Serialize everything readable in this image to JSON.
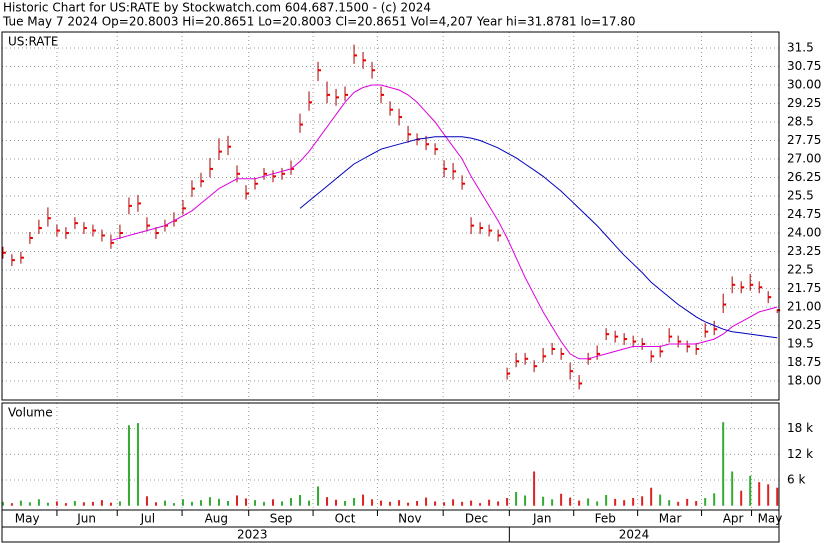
{
  "header": {
    "line1": "Historic Chart for US:RATE by Stockwatch.com 604.687.1500 - (c) 2024",
    "line2": "Tue May  7 2024  Op=20.8003  Hi=20.8651  Lo=20.8003  Cl=20.8651  Vol=4,207  Year hi=31.8781  lo=17.80"
  },
  "chart_data": [
    {
      "type": "ohlc",
      "title": "US:RATE",
      "xlim": [
        -0.1,
        86.2
      ],
      "ylim": [
        17.23,
        32.15
      ],
      "yticks": [
        {
          "value": 18,
          "label": "18.00"
        },
        18.75,
        19.5,
        {
          "value": 20.25,
          "label": "20.25"
        },
        {
          "value": 21,
          "label": "21.00"
        },
        21.75,
        22.5,
        23.25,
        {
          "value": 24,
          "label": "24.00"
        },
        24.75,
        25.5,
        26.25,
        {
          "value": 27,
          "label": "27.00"
        },
        27.75,
        28.5,
        29.25,
        {
          "value": 30,
          "label": "30.00"
        },
        30.75,
        31.5
      ],
      "xticks": [
        {
          "value": 2.7,
          "label": "May"
        },
        {
          "value": 9.3,
          "label": "Jun"
        },
        {
          "value": 16.1,
          "label": "Jul"
        },
        {
          "value": 23.7,
          "label": "Aug"
        },
        {
          "value": 30.9,
          "label": "Sep"
        },
        {
          "value": 38,
          "label": "Oct"
        },
        {
          "value": 45.2,
          "label": "Nov"
        },
        {
          "value": 52.6,
          "label": "Dec"
        },
        {
          "value": 59.9,
          "label": "Jan"
        },
        {
          "value": 66.9,
          "label": "Feb"
        },
        {
          "value": 74.1,
          "label": "Mar"
        },
        {
          "value": 81.1,
          "label": "Apr"
        },
        {
          "value": 85.2,
          "label": "May"
        }
      ],
      "years": [
        {
          "value": 27.7,
          "label": "2023"
        },
        {
          "value": 70.1,
          "label": "2024"
        }
      ],
      "grid": true,
      "bar_color": "#aa0000",
      "close_color": "#ee0000",
      "high": [
        23.4,
        23.1,
        23.2,
        24.0,
        24.5,
        25.0,
        24.3,
        24.2,
        24.6,
        24.4,
        24.3,
        24.1,
        23.9,
        24.3,
        25.4,
        25.5,
        24.6,
        24.2,
        24.5,
        24.8,
        25.3,
        26.1,
        26.4,
        27.0,
        27.8,
        27.9,
        26.7,
        25.9,
        26.2,
        26.6,
        26.5,
        26.6,
        26.9,
        28.8,
        29.7,
        30.9,
        30.1,
        29.8,
        29.9,
        31.6,
        31.3,
        30.9,
        29.9,
        29.3,
        29.0,
        28.3,
        28.0,
        27.9,
        27.6,
        26.9,
        26.8,
        26.3,
        24.6,
        24.4,
        24.3,
        24.1,
        18.5,
        19.1,
        19.1,
        18.8,
        19.3,
        19.5,
        19.3,
        18.7,
        18.2,
        19.1,
        19.4,
        20.1,
        20.0,
        19.9,
        19.8,
        19.7,
        19.2,
        19.4,
        20.1,
        19.8,
        19.6,
        19.5,
        20.3,
        20.4,
        21.5,
        22.2,
        22.0,
        22.3,
        22.0,
        21.6,
        20.87
      ],
      "low": [
        23.0,
        22.7,
        22.8,
        23.6,
        24.0,
        24.3,
        23.9,
        23.8,
        24.2,
        24.0,
        23.9,
        23.7,
        23.4,
        23.8,
        24.8,
        24.9,
        24.1,
        23.8,
        24.1,
        24.3,
        24.8,
        25.5,
        25.9,
        26.3,
        27.0,
        27.2,
        26.1,
        25.4,
        25.8,
        26.2,
        26.1,
        26.2,
        26.4,
        28.1,
        29.0,
        30.2,
        29.3,
        29.2,
        29.4,
        30.9,
        30.7,
        30.3,
        29.3,
        28.8,
        28.4,
        27.7,
        27.6,
        27.4,
        27.2,
        26.3,
        26.2,
        25.8,
        24.0,
        24.0,
        23.9,
        23.7,
        18.1,
        18.6,
        18.7,
        18.4,
        18.8,
        19.1,
        18.9,
        18.1,
        17.7,
        18.7,
        18.9,
        19.7,
        19.6,
        19.5,
        19.4,
        19.3,
        18.8,
        19.0,
        19.6,
        19.4,
        19.2,
        19.1,
        19.8,
        19.9,
        20.8,
        21.6,
        21.6,
        21.7,
        21.6,
        21.2,
        20.8
      ],
      "close": [
        23.2,
        22.9,
        23.0,
        23.8,
        24.2,
        24.6,
        24.1,
        24.0,
        24.4,
        24.2,
        24.1,
        23.9,
        23.6,
        24.0,
        25.1,
        25.2,
        24.3,
        24.0,
        24.3,
        24.5,
        25.0,
        25.8,
        26.1,
        26.6,
        27.3,
        27.5,
        26.4,
        25.6,
        26.0,
        26.4,
        26.3,
        26.4,
        26.6,
        28.4,
        29.3,
        30.6,
        29.6,
        29.5,
        29.6,
        31.2,
        31.0,
        30.6,
        29.6,
        29.0,
        28.7,
        28.0,
        27.8,
        27.6,
        27.4,
        26.6,
        26.5,
        26.0,
        24.3,
        24.2,
        24.1,
        23.9,
        18.3,
        18.8,
        18.9,
        18.6,
        19.0,
        19.3,
        19.1,
        18.4,
        17.9,
        18.9,
        19.1,
        19.9,
        19.8,
        19.7,
        19.6,
        19.5,
        19.0,
        19.2,
        19.8,
        19.6,
        19.4,
        19.3,
        20.0,
        20.1,
        21.1,
        21.9,
        21.8,
        21.9,
        21.8,
        21.4,
        20.87
      ],
      "lines": [
        {
          "color": "#dd00dd",
          "values": [
            null,
            null,
            null,
            null,
            null,
            null,
            null,
            null,
            null,
            null,
            null,
            null,
            23.7,
            23.8,
            23.9,
            24.0,
            24.1,
            24.2,
            24.3,
            24.5,
            24.7,
            24.9,
            25.2,
            25.5,
            25.8,
            26.0,
            26.2,
            26.2,
            26.2,
            26.3,
            26.4,
            26.5,
            26.6,
            26.9,
            27.3,
            27.8,
            28.3,
            28.8,
            29.3,
            29.7,
            29.9,
            30.0,
            30.0,
            29.9,
            29.8,
            29.6,
            29.3,
            28.9,
            28.5,
            28.0,
            27.5,
            27.0,
            26.3,
            25.7,
            25.1,
            24.5,
            23.8,
            23.0,
            22.2,
            21.5,
            20.8,
            20.2,
            19.6,
            19.1,
            18.9,
            18.9,
            19.0,
            19.1,
            19.2,
            19.3,
            19.4,
            19.4,
            19.4,
            19.4,
            19.5,
            19.5,
            19.5,
            19.5,
            19.6,
            19.7,
            19.9,
            20.2,
            20.4,
            20.6,
            20.8,
            20.9,
            21.0
          ]
        },
        {
          "color": "#0000bb",
          "values": [
            null,
            null,
            null,
            null,
            null,
            null,
            null,
            null,
            null,
            null,
            null,
            null,
            null,
            null,
            null,
            null,
            null,
            null,
            null,
            null,
            null,
            null,
            null,
            null,
            null,
            null,
            null,
            null,
            null,
            null,
            null,
            null,
            null,
            25.0,
            25.3,
            25.6,
            25.9,
            26.2,
            26.5,
            26.8,
            27.0,
            27.2,
            27.4,
            27.5,
            27.6,
            27.7,
            27.8,
            27.85,
            27.9,
            27.9,
            27.9,
            27.9,
            27.85,
            27.75,
            27.6,
            27.45,
            27.25,
            27.05,
            26.8,
            26.55,
            26.3,
            26.0,
            25.7,
            25.35,
            25.0,
            24.65,
            24.3,
            23.9,
            23.5,
            23.1,
            22.75,
            22.4,
            22.0,
            21.7,
            21.4,
            21.1,
            20.85,
            20.6,
            20.4,
            20.25,
            20.1,
            20.0,
            19.95,
            19.9,
            19.85,
            19.8,
            19.75
          ]
        }
      ]
    },
    {
      "type": "bar",
      "title": "Volume",
      "ylim": [
        -1000,
        24000
      ],
      "yticks": [
        {
          "value": 6000,
          "label": "6 k"
        },
        {
          "value": 12000,
          "label": "12 k"
        },
        {
          "value": 18000,
          "label": "18 k"
        }
      ],
      "grid": true,
      "up_color": "#33aa33",
      "down_color": "#dd2222",
      "values": [
        900,
        600,
        1200,
        800,
        1500,
        700,
        1000,
        600,
        1100,
        800,
        900,
        1300,
        700,
        1000,
        18800,
        19300,
        2200,
        800,
        1200,
        600,
        1500,
        900,
        1300,
        2000,
        1600,
        1100,
        2400,
        1700,
        1300,
        900,
        1500,
        1000,
        1800,
        2500,
        1200,
        4500,
        2000,
        1400,
        1100,
        1800,
        2600,
        1500,
        1200,
        900,
        1300,
        700,
        1100,
        1900,
        1000,
        800,
        1500,
        900,
        1200,
        600,
        1400,
        1000,
        1800,
        3200,
        2400,
        8000,
        2100,
        1500,
        2800,
        1900,
        1200,
        1700,
        1000,
        2500,
        1600,
        1300,
        1800,
        2200,
        4200,
        2600,
        1300,
        900,
        1600,
        1100,
        1800,
        2900,
        19500,
        8000,
        3500,
        7000,
        5500,
        5000,
        4207
      ]
    }
  ]
}
